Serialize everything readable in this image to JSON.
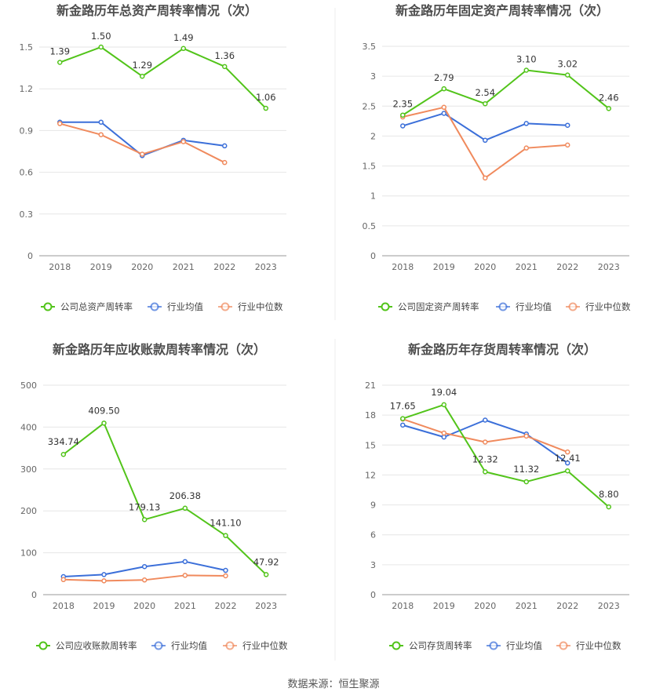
{
  "source_label": "数据来源：恒生聚源",
  "chart_data": [
    {
      "type": "line",
      "title": "新金路历年总资产周转率情况（次）",
      "categories": [
        "2018",
        "2019",
        "2020",
        "2021",
        "2022",
        "2023"
      ],
      "yticks": [
        "0",
        "0.3",
        "0.6",
        "0.9",
        "1.2",
        "1.5"
      ],
      "ylim": [
        0,
        1.5
      ],
      "series": [
        {
          "name": "公司总资产周转率",
          "color": "#52c41a",
          "values": [
            1.39,
            1.5,
            1.29,
            1.49,
            1.36,
            1.06
          ],
          "labels": [
            "1.39",
            "1.50",
            "1.29",
            "1.49",
            "1.36",
            "1.06"
          ]
        },
        {
          "name": "行业均值",
          "color": "#3b6fd9",
          "values": [
            0.96,
            0.96,
            0.72,
            0.83,
            0.79,
            null
          ]
        },
        {
          "name": "行业中位数",
          "color": "#f08a5d",
          "values": [
            0.95,
            0.87,
            0.73,
            0.82,
            0.67,
            null
          ]
        }
      ]
    },
    {
      "type": "line",
      "title": "新金路历年固定资产周转率情况（次）",
      "categories": [
        "2018",
        "2019",
        "2020",
        "2021",
        "2022",
        "2023"
      ],
      "yticks": [
        "0",
        "0.5",
        "1",
        "1.5",
        "2",
        "2.5",
        "3",
        "3.5"
      ],
      "ylim": [
        0,
        3.5
      ],
      "series": [
        {
          "name": "公司固定资产周转率",
          "color": "#52c41a",
          "values": [
            2.35,
            2.79,
            2.54,
            3.1,
            3.02,
            2.46
          ],
          "labels": [
            "2.35",
            "2.79",
            "2.54",
            "3.10",
            "3.02",
            "2.46"
          ]
        },
        {
          "name": "行业均值",
          "color": "#3b6fd9",
          "values": [
            2.17,
            2.38,
            1.93,
            2.21,
            2.18,
            null
          ]
        },
        {
          "name": "行业中位数",
          "color": "#f08a5d",
          "values": [
            2.32,
            2.48,
            1.3,
            1.8,
            1.85,
            null
          ]
        }
      ]
    },
    {
      "type": "line",
      "title": "新金路历年应收账款周转率情况（次）",
      "categories": [
        "2018",
        "2019",
        "2020",
        "2021",
        "2022",
        "2023"
      ],
      "yticks": [
        "0",
        "100",
        "200",
        "300",
        "400",
        "500"
      ],
      "ylim": [
        0,
        500
      ],
      "series": [
        {
          "name": "公司应收账款周转率",
          "color": "#52c41a",
          "values": [
            334.74,
            409.5,
            179.13,
            206.38,
            141.1,
            47.92
          ],
          "labels": [
            "334.74",
            "409.50",
            "179.13",
            "206.38",
            "141.10",
            "47.92"
          ]
        },
        {
          "name": "行业均值",
          "color": "#3b6fd9",
          "values": [
            43,
            48,
            67,
            79,
            58,
            null
          ]
        },
        {
          "name": "行业中位数",
          "color": "#f08a5d",
          "values": [
            36,
            33,
            35,
            46,
            45,
            null
          ]
        }
      ]
    },
    {
      "type": "line",
      "title": "新金路历年存货周转率情况（次）",
      "categories": [
        "2018",
        "2019",
        "2020",
        "2021",
        "2022",
        "2023"
      ],
      "yticks": [
        "0",
        "3",
        "6",
        "9",
        "12",
        "15",
        "18",
        "21"
      ],
      "ylim": [
        0,
        21
      ],
      "series": [
        {
          "name": "公司存货周转率",
          "color": "#52c41a",
          "values": [
            17.65,
            19.04,
            12.32,
            11.32,
            12.41,
            8.8
          ],
          "labels": [
            "17.65",
            "19.04",
            "12.32",
            "11.32",
            "12.41",
            "8.80"
          ]
        },
        {
          "name": "行业均值",
          "color": "#3b6fd9",
          "values": [
            17.0,
            15.8,
            17.5,
            16.1,
            13.2,
            null
          ]
        },
        {
          "name": "行业中位数",
          "color": "#f08a5d",
          "values": [
            17.6,
            16.2,
            15.3,
            15.9,
            14.3,
            null
          ]
        }
      ]
    }
  ]
}
